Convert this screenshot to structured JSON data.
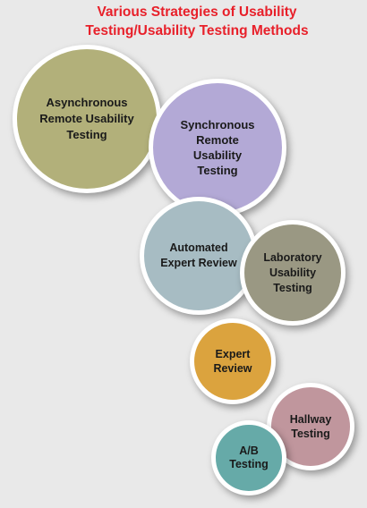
{
  "title": {
    "line1": "Various Strategies of Usability",
    "line2": "Testing/Usability Testing Methods",
    "color": "#e8202a"
  },
  "methods": [
    {
      "label": "Asynchronous\nRemote Usability\nTesting",
      "color": "#b2b07a"
    },
    {
      "label": "Synchronous\nRemote\nUsability\nTesting",
      "color": "#b3a9d6"
    },
    {
      "label": "Automated\nExpert Review",
      "color": "#a7bcc3"
    },
    {
      "label": "Laboratory\nUsability\nTesting",
      "color": "#9a9883"
    },
    {
      "label": "Expert\nReview",
      "color": "#dba33e"
    },
    {
      "label": "Hallway\nTesting",
      "color": "#c0969d"
    },
    {
      "label": "A/B\nTesting",
      "color": "#66aaa8"
    }
  ]
}
